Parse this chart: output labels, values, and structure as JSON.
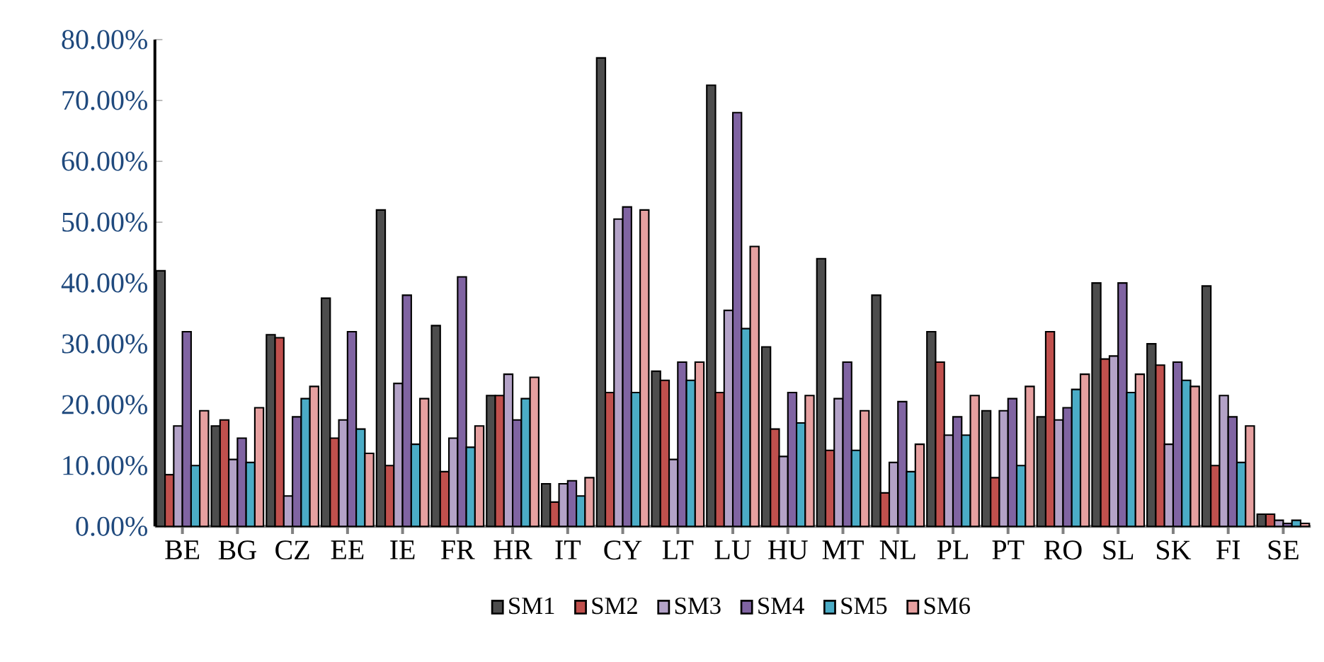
{
  "chart_data": {
    "type": "bar",
    "categories": [
      "BE",
      "BG",
      "CZ",
      "EE",
      "IE",
      "FR",
      "HR",
      "IT",
      "CY",
      "LT",
      "LU",
      "HU",
      "MT",
      "NL",
      "PL",
      "PT",
      "RO",
      "SL",
      "SK",
      "FI",
      "SE"
    ],
    "series": [
      {
        "name": "SM1",
        "color": "#4d4d4d",
        "values": [
          42,
          16.5,
          31.5,
          37.5,
          52,
          33,
          21.5,
          7,
          77,
          25.5,
          72.5,
          29.5,
          44,
          38,
          32,
          19,
          18,
          40,
          30,
          39.5,
          2
        ]
      },
      {
        "name": "SM2",
        "color": "#c0504d",
        "values": [
          8.5,
          17.5,
          31,
          14.5,
          10,
          9,
          21.5,
          4,
          22,
          24,
          22,
          16,
          12.5,
          5.5,
          27,
          8,
          32,
          27.5,
          26.5,
          10,
          2
        ]
      },
      {
        "name": "SM3",
        "color": "#b3a2c7",
        "values": [
          16.5,
          11,
          5,
          17.5,
          23.5,
          14.5,
          25,
          7,
          50.5,
          11,
          35.5,
          11.5,
          21,
          10.5,
          15,
          19,
          17.5,
          28,
          13.5,
          21.5,
          1
        ]
      },
      {
        "name": "SM4",
        "color": "#8064a2",
        "values": [
          32,
          14.5,
          18,
          32,
          38,
          41,
          17.5,
          7.5,
          52.5,
          27,
          68,
          22,
          27,
          20.5,
          18,
          21,
          19.5,
          40,
          27,
          18,
          0.5
        ]
      },
      {
        "name": "SM5",
        "color": "#4bacc6",
        "values": [
          10,
          10.5,
          21,
          16,
          13.5,
          13,
          21,
          5,
          22,
          24,
          32.5,
          17,
          12.5,
          9,
          15,
          10,
          22.5,
          22,
          24,
          10.5,
          1
        ]
      },
      {
        "name": "SM6",
        "color": "#e6a0a0",
        "values": [
          19,
          19.5,
          23,
          12,
          21,
          16.5,
          24.5,
          8,
          52,
          27,
          46,
          21.5,
          19,
          13.5,
          21.5,
          23,
          25,
          25,
          23,
          16.5,
          0.5
        ]
      }
    ],
    "ylim": [
      0,
      80
    ],
    "yticks": [
      {
        "value": 0,
        "label": "0.00%"
      },
      {
        "value": 10,
        "label": "10.00%"
      },
      {
        "value": 20,
        "label": "20.00%"
      },
      {
        "value": 30,
        "label": "30.00%"
      },
      {
        "value": 40,
        "label": "40.00%"
      },
      {
        "value": 50,
        "label": "50.00%"
      },
      {
        "value": 60,
        "label": "60.00%"
      },
      {
        "value": 70,
        "label": "70.00%"
      },
      {
        "value": 80,
        "label": "80.00%"
      }
    ],
    "legend": "bottom"
  }
}
